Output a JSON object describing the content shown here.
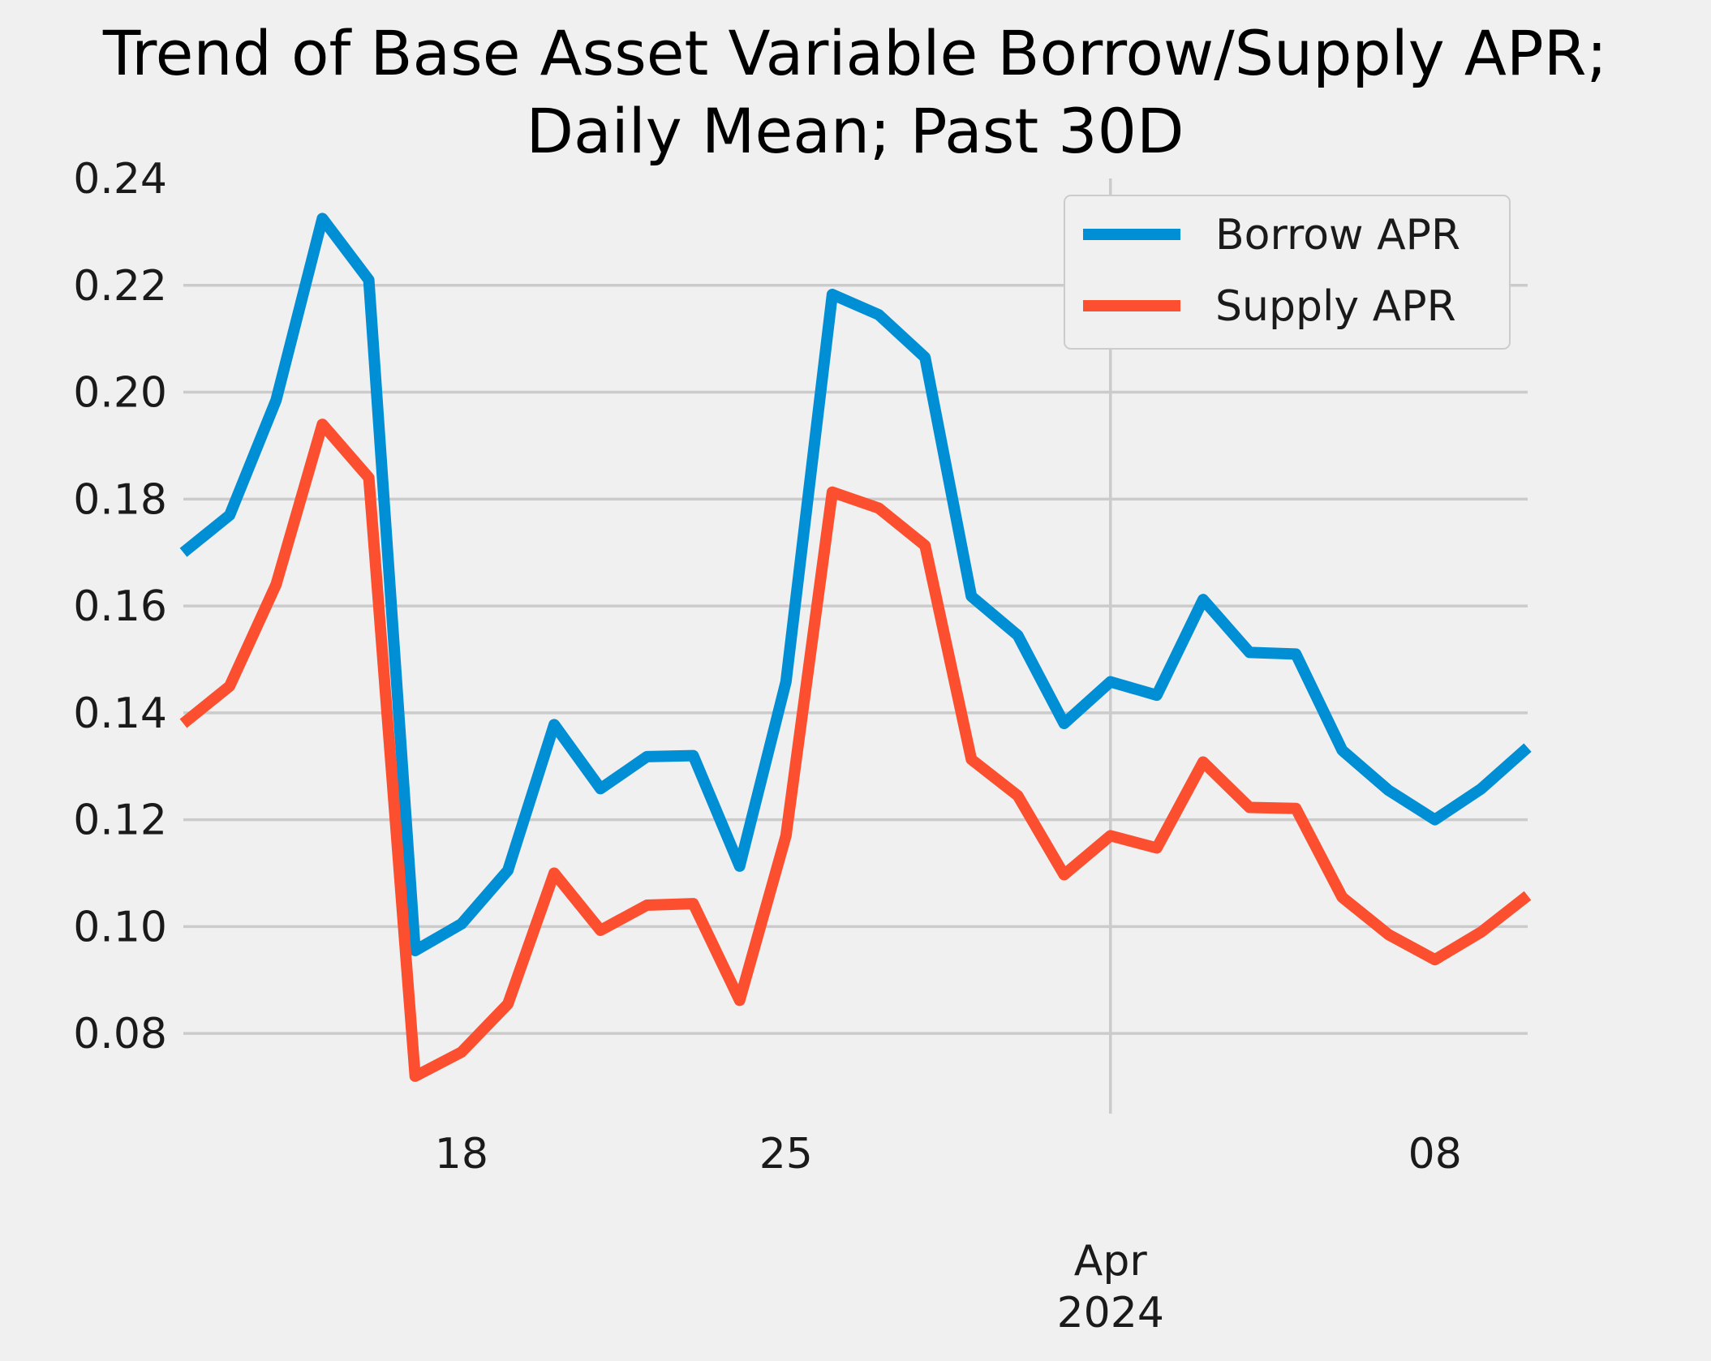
{
  "chart_data": {
    "type": "line",
    "title": "Trend of Base Asset Variable Borrow/Supply APR;",
    "subtitle": "Daily Mean; Past 30D",
    "xlabel": "",
    "ylabel": "",
    "ylim": [
      0.065,
      0.24
    ],
    "yticks": [
      0.08,
      0.1,
      0.12,
      0.14,
      0.16,
      0.18,
      0.2,
      0.22,
      0.24
    ],
    "ytick_labels": [
      "0.08",
      "0.10",
      "0.12",
      "0.14",
      "0.16",
      "0.18",
      "0.20",
      "0.22",
      "0.24"
    ],
    "x_dates": [
      "2024-03-12",
      "2024-03-13",
      "2024-03-14",
      "2024-03-15",
      "2024-03-16",
      "2024-03-17",
      "2024-03-18",
      "2024-03-19",
      "2024-03-20",
      "2024-03-21",
      "2024-03-22",
      "2024-03-23",
      "2024-03-24",
      "2024-03-25",
      "2024-03-26",
      "2024-03-27",
      "2024-03-28",
      "2024-03-29",
      "2024-03-30",
      "2024-03-31",
      "2024-04-01",
      "2024-04-02",
      "2024-04-03",
      "2024-04-04",
      "2024-04-05",
      "2024-04-06",
      "2024-04-07",
      "2024-04-08",
      "2024-04-09",
      "2024-04-10"
    ],
    "xlim": [
      "2024-03-12",
      "2024-04-10"
    ],
    "xticks": [
      {
        "date": "2024-03-18",
        "label": "18"
      },
      {
        "date": "2024-03-25",
        "label": "25"
      },
      {
        "date": "2024-04-01",
        "label": "Apr\n2024"
      },
      {
        "date": "2024-04-08",
        "label": "08"
      }
    ],
    "grid": "y-axis plus one vertical line at Apr 2024",
    "legend_position": "upper right",
    "series": [
      {
        "name": "Borrow APR",
        "color": "#008fd5",
        "values": [
          0.17,
          0.177,
          0.1985,
          0.2325,
          0.221,
          0.0955,
          0.1005,
          0.1105,
          0.1378,
          0.1258,
          0.1318,
          0.132,
          0.1113,
          0.1458,
          0.2183,
          0.2145,
          0.2065,
          0.1618,
          0.1545,
          0.138,
          0.1458,
          0.1433,
          0.1612,
          0.1513,
          0.151,
          0.133,
          0.1255,
          0.12,
          0.1258,
          0.1335
        ]
      },
      {
        "name": "Supply APR",
        "color": "#fc4f30",
        "values": [
          0.138,
          0.145,
          0.164,
          0.194,
          0.184,
          0.072,
          0.0765,
          0.0855,
          0.11,
          0.0993,
          0.104,
          0.1043,
          0.0862,
          0.117,
          0.1813,
          0.1783,
          0.1713,
          0.1313,
          0.1245,
          0.1097,
          0.117,
          0.1147,
          0.1308,
          0.1223,
          0.1221,
          0.1055,
          0.0985,
          0.0938,
          0.099,
          0.1058
        ]
      }
    ]
  }
}
